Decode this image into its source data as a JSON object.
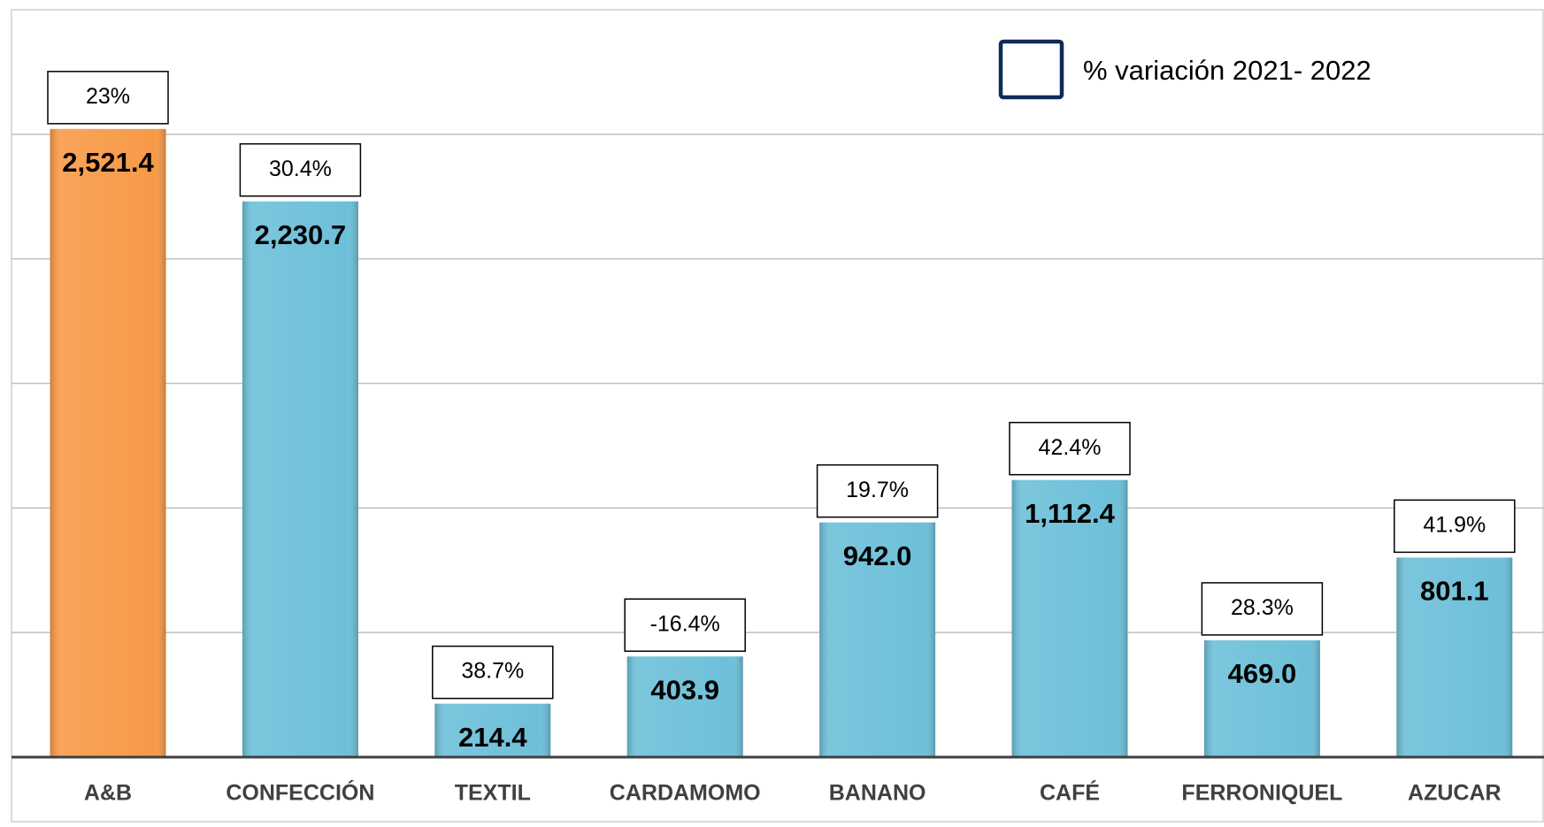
{
  "chart_data": {
    "type": "bar",
    "categories": [
      "A&B",
      "CONFECCIÓN",
      "TEXTIL",
      "CARDAMOMO",
      "BANANO",
      "CAFÉ",
      "FERRONIQUEL",
      "AZUCAR"
    ],
    "values": [
      2521.4,
      2230.7,
      214.4,
      403.9,
      942.0,
      1112.4,
      469.0,
      801.1
    ],
    "value_labels": [
      "2,521.4",
      "2,230.7",
      "214.4",
      "403.9",
      "942.0",
      "1,112.4",
      "469.0",
      "801.1"
    ],
    "colors": [
      "#f79a48",
      "#6dc0d9",
      "#6dc0d9",
      "#6dc0d9",
      "#6dc0d9",
      "#6dc0d9",
      "#6dc0d9",
      "#6dc0d9"
    ],
    "ylim": [
      0,
      3000
    ],
    "yticks": [
      0,
      500,
      1000,
      1500,
      2000,
      2500
    ],
    "grid": true,
    "variation": {
      "name": "% variación  2021- 2022",
      "color": "#0d2a5a",
      "values": [
        23,
        30.4,
        38.7,
        -16.4,
        19.7,
        42.4,
        28.3,
        41.9
      ],
      "value_labels": [
        "23%",
        "30.4%",
        "38.7%",
        "-16.4%",
        "19.7%",
        "42.4%",
        "28.3%",
        "41.9%"
      ]
    }
  }
}
